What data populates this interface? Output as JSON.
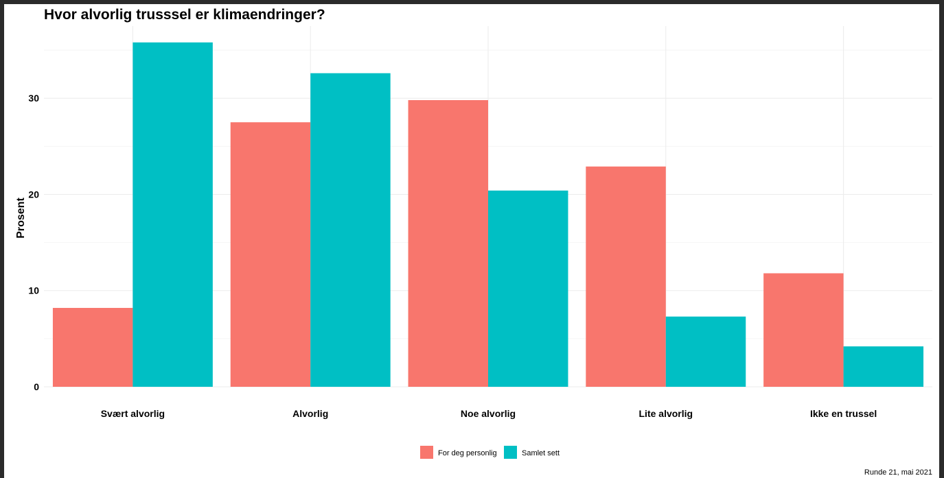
{
  "chart_data": {
    "type": "bar",
    "title": "Hvor alvorlig trusssel er klimaendringer?",
    "ylabel": "Prosent",
    "xlabel": "",
    "categories": [
      "Svært alvorlig",
      "Alvorlig",
      "Noe alvorlig",
      "Lite alvorlig",
      "Ikke en trussel"
    ],
    "series": [
      {
        "name": "For deg personlig",
        "color": "#F8766D",
        "values": [
          8.2,
          27.5,
          29.8,
          22.9,
          11.8
        ]
      },
      {
        "name": "Samlet sett",
        "color": "#00BFC4",
        "values": [
          35.8,
          32.6,
          20.4,
          7.3,
          4.2
        ]
      }
    ],
    "ylim": [
      0,
      37.5
    ],
    "yticks": [
      0,
      10,
      20,
      30
    ],
    "grid": true,
    "legend_position": "bottom",
    "caption": "Runde 21, mai 2021"
  }
}
